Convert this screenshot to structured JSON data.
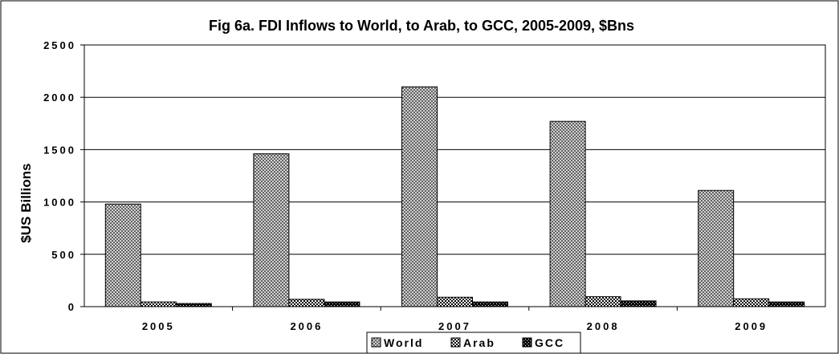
{
  "chart_data": {
    "type": "bar",
    "title": "Fig 6a. FDI Inflows to World, to Arab, to GCC, 2005-2009, $Bns",
    "xlabel": "",
    "ylabel": "$US Billions",
    "categories": [
      "2005",
      "2006",
      "2007",
      "2008",
      "2009"
    ],
    "series": [
      {
        "name": "World",
        "values": [
          980,
          1460,
          2100,
          1770,
          1110
        ],
        "pattern": "crosshatch"
      },
      {
        "name": "Arab",
        "values": [
          45,
          70,
          90,
          95,
          75
        ],
        "pattern": "checker"
      },
      {
        "name": "GCC",
        "values": [
          30,
          45,
          45,
          55,
          45
        ],
        "pattern": "dark-checker"
      }
    ],
    "ylim": [
      0,
      2500
    ],
    "yticks": [
      "0",
      "500",
      "1000",
      "1500",
      "2000",
      "2500"
    ],
    "grid": true,
    "legend": "bottom-center",
    "colors": {
      "bar_edge": "#000000",
      "grid": "#000000",
      "background": "#ffffff"
    }
  }
}
